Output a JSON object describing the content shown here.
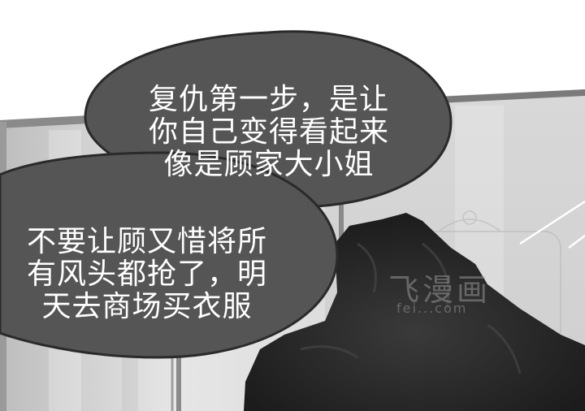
{
  "bubbles": [
    {
      "lines": [
        "复仇第一步，是让",
        "你自己变得看起来",
        "像是顾家大小姐"
      ]
    },
    {
      "lines": [
        "不要让顾又惜将所",
        "有风头都抢了，明",
        "天去商场买衣服"
      ]
    }
  ],
  "watermark": {
    "title": "飞漫画",
    "url": "fei...com"
  },
  "colors": {
    "bubble": "#555555",
    "bubble_outline": "#2a2a2a",
    "text": "#ffffff",
    "cloth": "#262626"
  }
}
